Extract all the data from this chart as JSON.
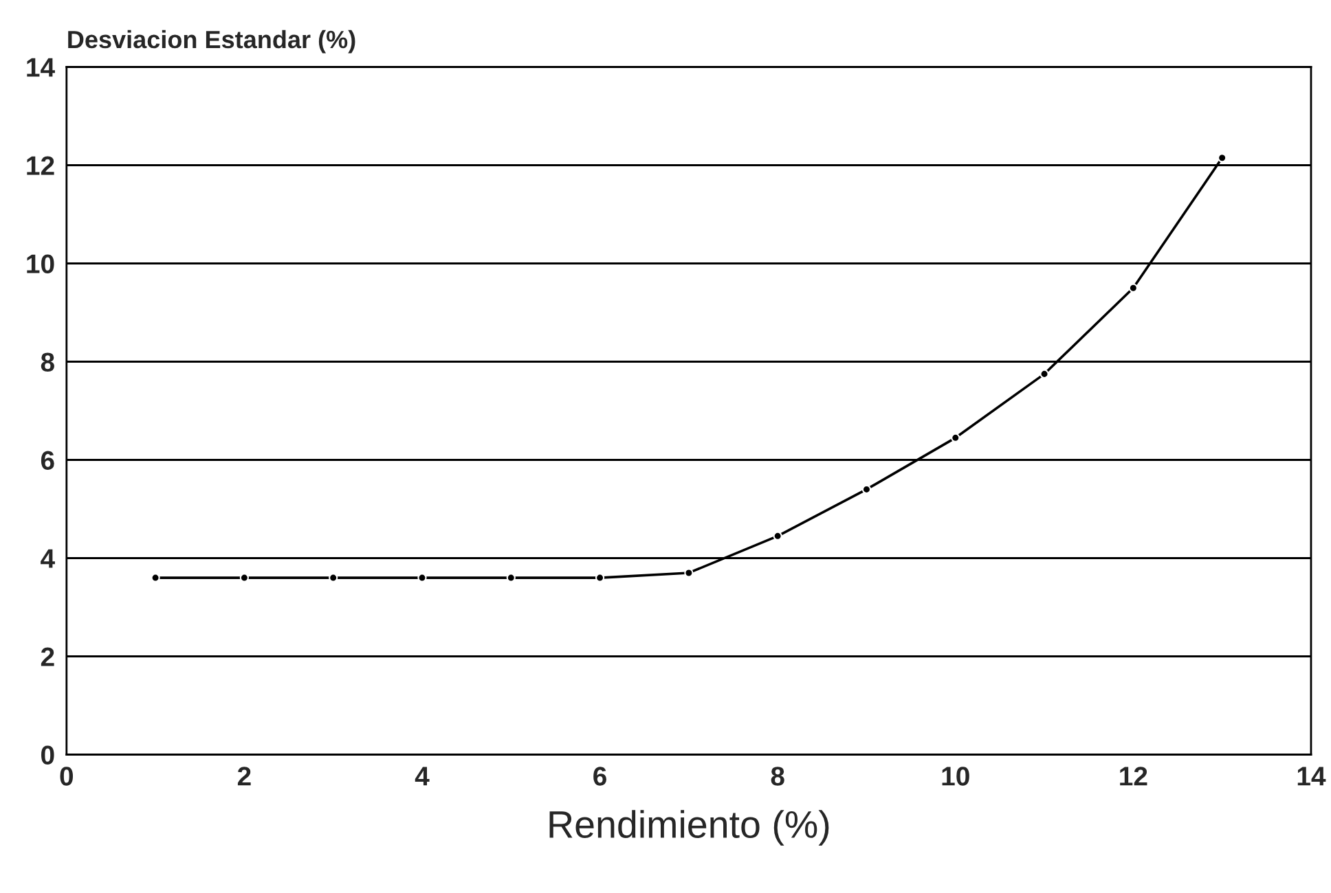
{
  "chart_data": {
    "type": "line",
    "ylabel": "Desviacion Estandar (%)",
    "xlabel": "Rendimiento (%)",
    "x": [
      1,
      2,
      3,
      4,
      5,
      6,
      7,
      8,
      9,
      10,
      11,
      12,
      13
    ],
    "series": [
      {
        "color": "#000000",
        "values": [
          3.6,
          3.6,
          3.6,
          3.6,
          3.6,
          3.6,
          3.7,
          4.45,
          5.4,
          6.45,
          7.75,
          9.5,
          12.15
        ]
      }
    ],
    "xlim": [
      0,
      14
    ],
    "ylim": [
      0,
      14
    ],
    "xticks": [
      0,
      2,
      4,
      6,
      8,
      10,
      12,
      14
    ],
    "yticks": [
      0,
      2,
      4,
      6,
      8,
      10,
      12,
      14
    ],
    "grid": "y",
    "marker": "circle",
    "line_style": "solid"
  }
}
